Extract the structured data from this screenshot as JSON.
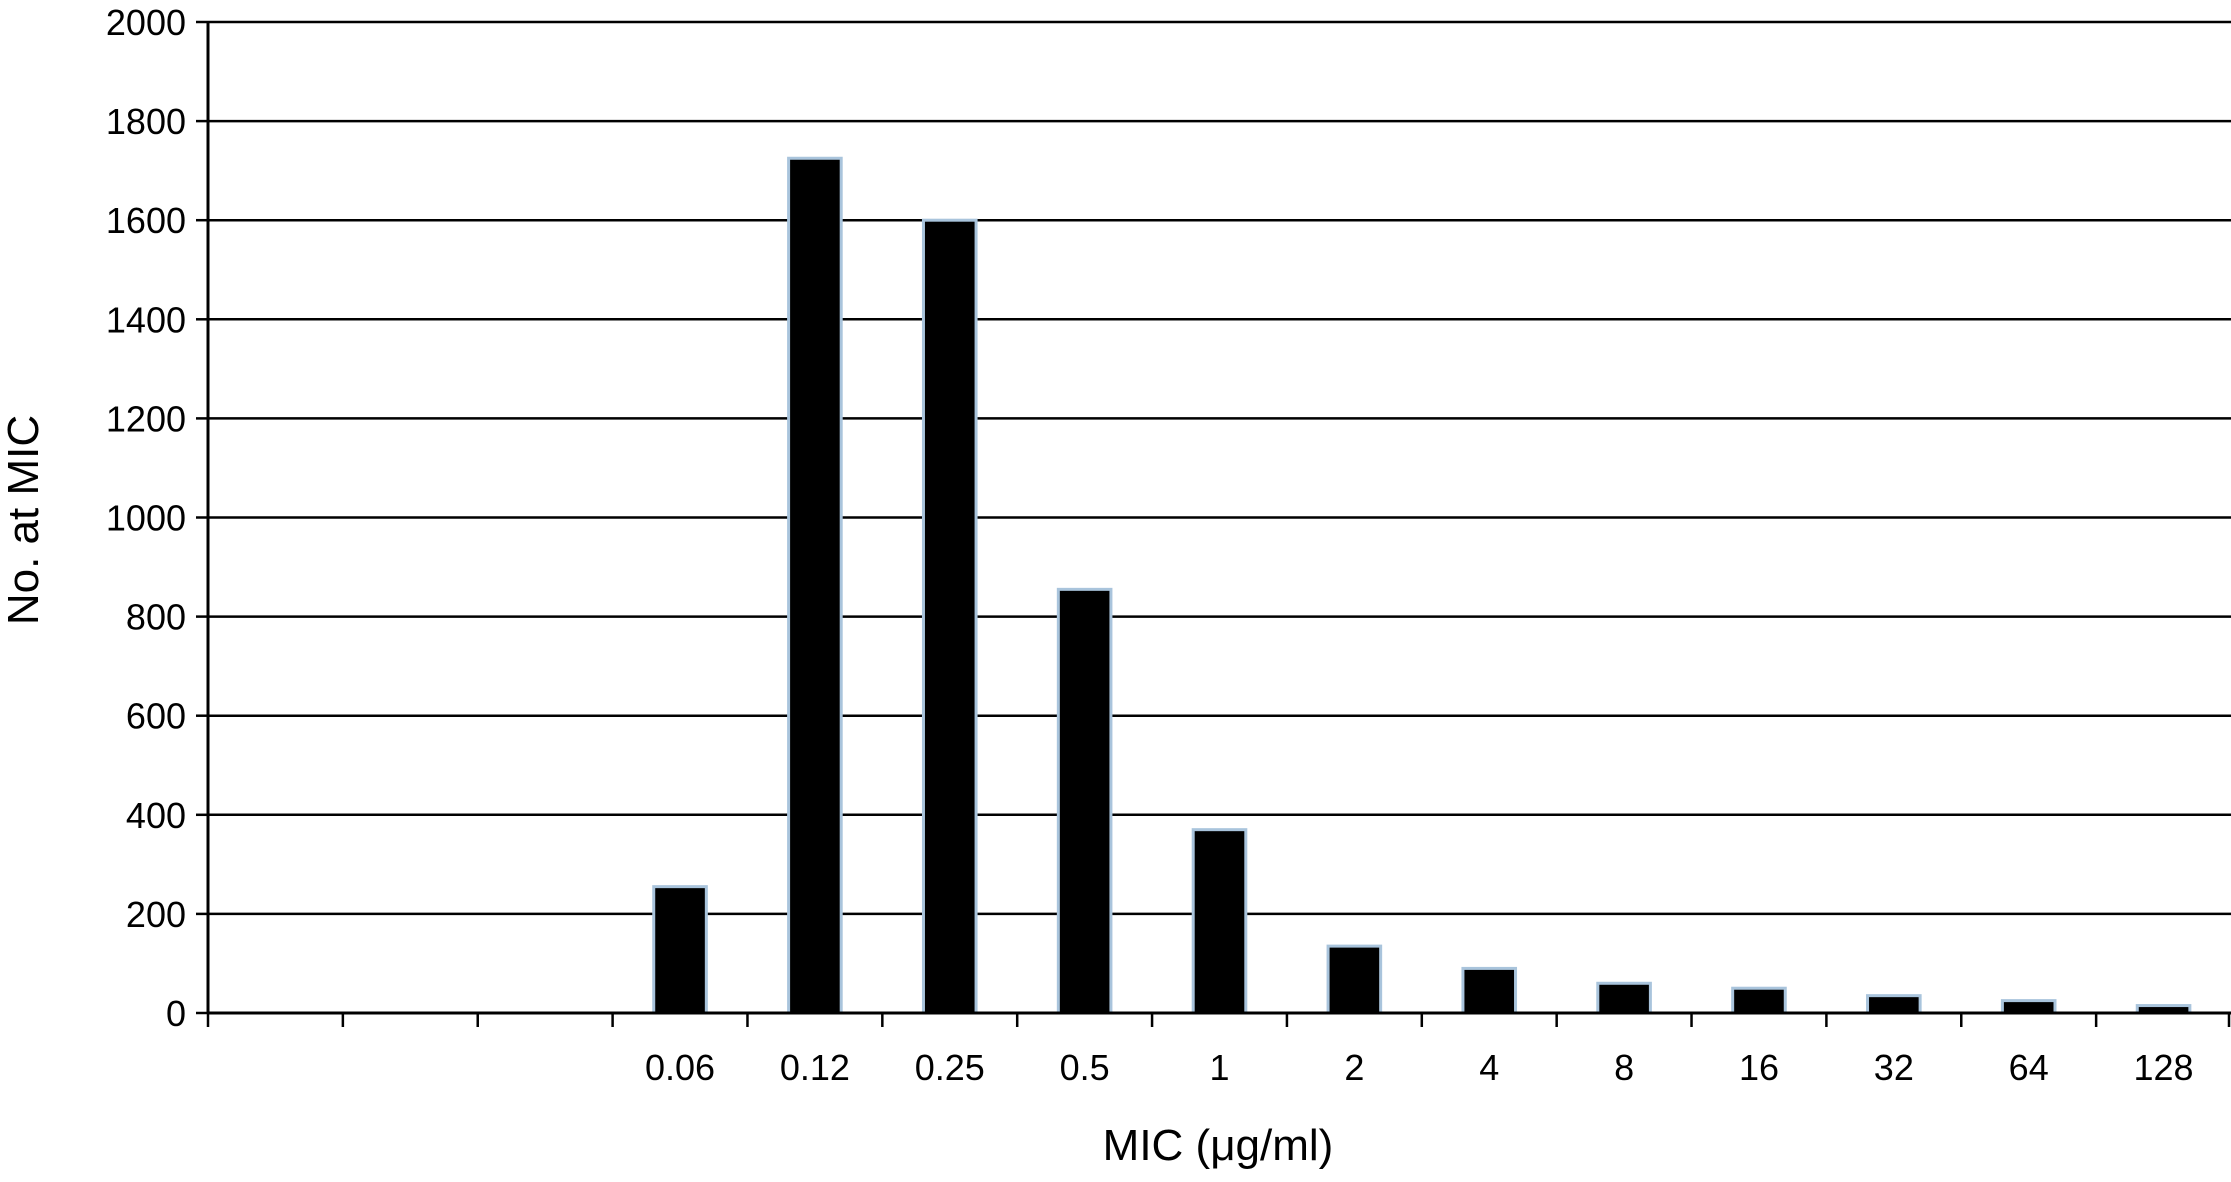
{
  "chart_data": {
    "type": "bar",
    "title": "",
    "xlabel": "MIC (μg/ml)",
    "ylabel": "No. at MIC",
    "ylim": [
      0,
      2000
    ],
    "yticks": [
      0,
      200,
      400,
      600,
      800,
      1000,
      1200,
      1400,
      1600,
      1800,
      2000
    ],
    "grid": "horizontal",
    "legend": "none",
    "categories": [
      "",
      "",
      "",
      "0.06",
      "0.12",
      "0.25",
      "0.5",
      "1",
      "2",
      "4",
      "8",
      "16",
      "32",
      "64",
      "128"
    ],
    "values": [
      null,
      null,
      null,
      255,
      1725,
      1600,
      855,
      370,
      135,
      90,
      60,
      50,
      35,
      25,
      15
    ],
    "colors": {
      "bar_fill": "#000000",
      "bar_stroke": "#a9c4dc",
      "grid": "#000000",
      "axis": "#000000"
    }
  }
}
